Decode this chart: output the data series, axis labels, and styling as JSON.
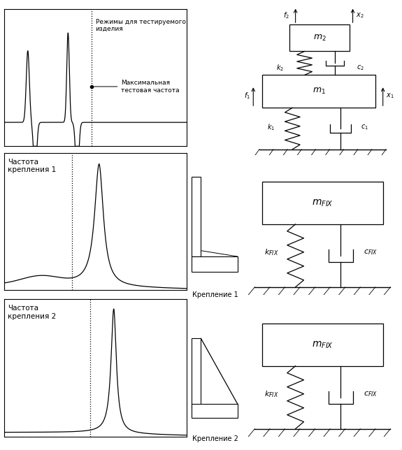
{
  "bg_color": "#ffffff",
  "row1_label_modes": "Режимы для тестируемого\nизделия",
  "row2_label": "Частота\nкрепления 1",
  "row3_label": "Частота\nкрепления 2",
  "max_freq_label": "Максимальная\nтестовая частота",
  "krepl1_label": "Крепление 1",
  "krepl2_label": "Крепление 2",
  "mfix_label": "$m_{FIX}$",
  "kfix_label": "$k_{FIX}$",
  "cfix_label": "$c_{FIX}$",
  "m1_label": "$m_1$",
  "m2_label": "$m_2$",
  "k1_label": "$k_1$",
  "k2_label": "$k_2$",
  "c1_label": "$c_1$",
  "c2_label": "$c_2$",
  "f1_label": "$f_1$",
  "f2_label": "$f_2$",
  "x1_label": "$x_1$",
  "x2_label": "$x_2$"
}
